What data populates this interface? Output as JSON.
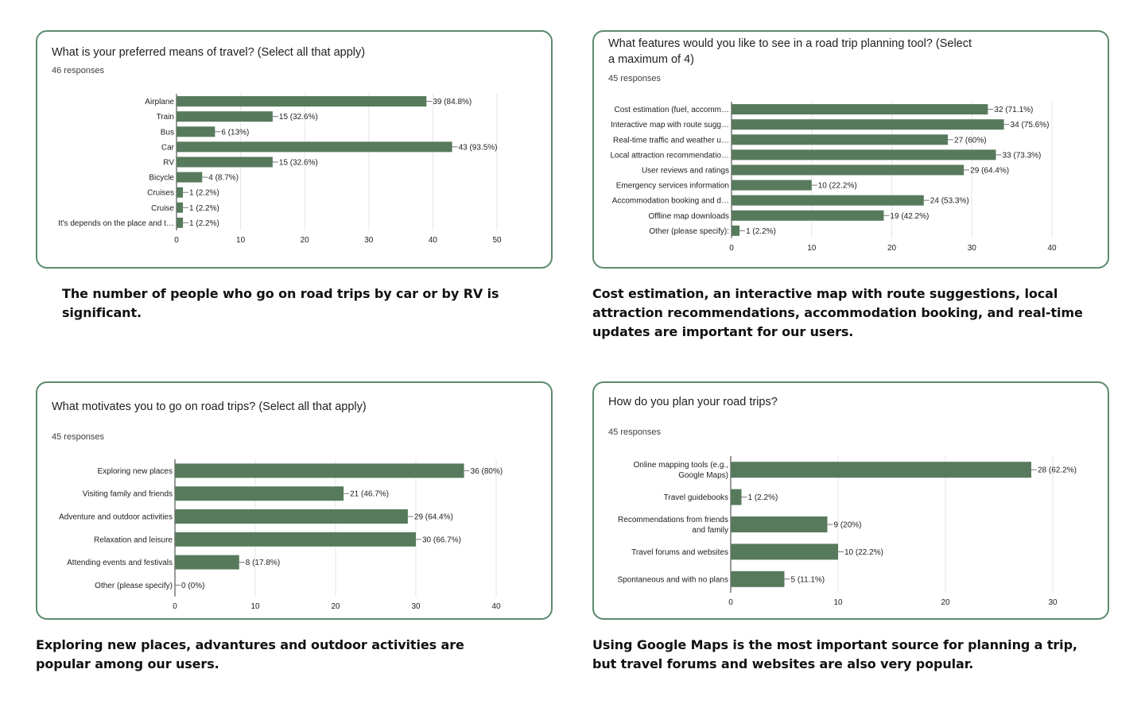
{
  "theme": {
    "bar_color": "#577a5c",
    "border_color": "#5b8a6e",
    "grid_color": "#e6e6e6"
  },
  "chart_data": [
    {
      "id": "travel-means",
      "type": "bar",
      "orientation": "horizontal",
      "title": "What is your preferred means of travel? (Select all that apply)",
      "responses": "46 responses",
      "categories": [
        "Airplane",
        "Train",
        "Bus",
        "Car",
        "RV",
        "Bicycle",
        "Cruises",
        "Cruise",
        "It's depends on the place and t…"
      ],
      "values": [
        39,
        15,
        6,
        43,
        15,
        4,
        1,
        1,
        1
      ],
      "labels": [
        "39 (84.8%)",
        "15 (32.6%)",
        "6 (13%)",
        "43 (93.5%)",
        "15 (32.6%)",
        "4 (8.7%)",
        "1 (2.2%)",
        "1 (2.2%)",
        "1 (2.2%)"
      ],
      "xlim": [
        0,
        50
      ],
      "ticks": [
        0,
        10,
        20,
        30,
        40,
        50
      ],
      "grid": true,
      "caption": "The number of people who go on road trips by car or by RV is significant."
    },
    {
      "id": "planning-features",
      "type": "bar",
      "orientation": "horizontal",
      "title": "What features would you like to see in a road trip planning tool? (Select a maximum of 4)",
      "responses": "45 responses",
      "categories": [
        "Cost estimation (fuel, accomm…",
        "Interactive map with route sugg…",
        "Real-time traffic and weather u…",
        "Local attraction recommendatio…",
        "User reviews and ratings",
        "Emergency services information",
        "Accommodation booking and d…",
        "Offline map downloads",
        "Other (please specify):"
      ],
      "values": [
        32,
        34,
        27,
        33,
        29,
        10,
        24,
        19,
        1
      ],
      "labels": [
        "32 (71.1%)",
        "34 (75.6%)",
        "27 (60%)",
        "33 (73.3%)",
        "29 (64.4%)",
        "10 (22.2%)",
        "24 (53.3%)",
        "19 (42.2%)",
        "1 (2.2%)"
      ],
      "xlim": [
        0,
        40
      ],
      "ticks": [
        0,
        10,
        20,
        30,
        40
      ],
      "grid": true,
      "caption": "Cost estimation, an interactive map with route suggestions, local attraction recommendations, accommodation booking, and real-time updates are important for our users."
    },
    {
      "id": "motivations",
      "type": "bar",
      "orientation": "horizontal",
      "title": "What motivates you to go on road trips? (Select all that apply)",
      "responses": "45 responses",
      "categories": [
        "Exploring new places",
        "Visiting family and friends",
        "Adventure and outdoor activities",
        "Relaxation and leisure",
        "Attending events and festivals",
        "Other (please specify)"
      ],
      "values": [
        36,
        21,
        29,
        30,
        8,
        0
      ],
      "labels": [
        "36 (80%)",
        "21 (46.7%)",
        "29 (64.4%)",
        "30 (66.7%)",
        "8 (17.8%)",
        "0 (0%)"
      ],
      "xlim": [
        0,
        40
      ],
      "ticks": [
        0,
        10,
        20,
        30,
        40
      ],
      "grid": true,
      "caption": "Exploring new places, advantures and outdoor activities are popular among our users."
    },
    {
      "id": "planning-methods",
      "type": "bar",
      "orientation": "horizontal",
      "title": "How do you plan your road trips?",
      "responses": "45 responses",
      "categories": [
        "Online mapping tools (e.g., Google Maps)",
        "Travel guidebooks",
        "Recommendations from friends and family",
        "Travel forums and websites",
        "Spontaneous and with no plans"
      ],
      "category_lines": [
        [
          "Online mapping tools (e.g.,",
          "Google Maps)"
        ],
        [
          "Travel guidebooks"
        ],
        [
          "Recommendations from friends",
          "and family"
        ],
        [
          "Travel forums and websites"
        ],
        [
          "Spontaneous and with no plans"
        ]
      ],
      "values": [
        28,
        1,
        9,
        10,
        5
      ],
      "labels": [
        "28 (62.2%)",
        "1 (2.2%)",
        "9 (20%)",
        "10 (22.2%)",
        "5 (11.1%)"
      ],
      "xlim": [
        0,
        30
      ],
      "ticks": [
        0,
        10,
        20,
        30
      ],
      "grid": true,
      "caption": "Using Google Maps is the most important source for planning a trip, but travel forums and websites are also very popular."
    }
  ]
}
